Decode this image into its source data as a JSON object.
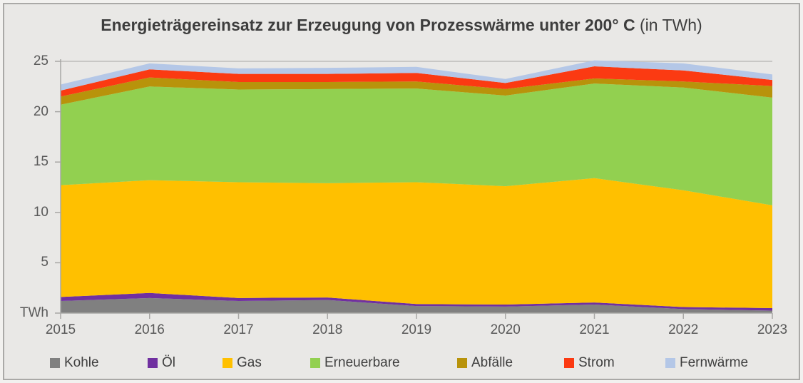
{
  "title": {
    "main": "Energieträgereinsatz zur Erzeugung von Prozesswärme unter 200° C",
    "suffix": " (in TWh)"
  },
  "chart_data": {
    "type": "area",
    "stacked": true,
    "title": "Energieträgereinsatz zur Erzeugung von Prozesswärme unter 200° C (in TWh)",
    "x": [
      "2015",
      "2016",
      "2017",
      "2018",
      "2019",
      "2020",
      "2021",
      "2022",
      "2023"
    ],
    "series": [
      {
        "name": "Kohle",
        "color": "#808080",
        "values": [
          1.2,
          1.5,
          1.2,
          1.3,
          0.7,
          0.65,
          0.85,
          0.4,
          0.25
        ]
      },
      {
        "name": "Öl",
        "color": "#7030A0",
        "values": [
          0.4,
          0.5,
          0.3,
          0.25,
          0.2,
          0.2,
          0.2,
          0.2,
          0.25
        ]
      },
      {
        "name": "Gas",
        "color": "#FFC000",
        "values": [
          11.1,
          11.2,
          11.5,
          11.35,
          12.1,
          11.75,
          12.35,
          11.6,
          10.2
        ]
      },
      {
        "name": "Erneuerbare",
        "color": "#92D050",
        "values": [
          8.0,
          9.3,
          9.2,
          9.35,
          9.3,
          9.0,
          9.4,
          10.2,
          10.7
        ]
      },
      {
        "name": "Abfälle",
        "color": "#B8930B",
        "values": [
          0.8,
          0.9,
          0.75,
          0.7,
          0.7,
          0.65,
          0.5,
          0.6,
          1.15
        ]
      },
      {
        "name": "Strom",
        "color": "#FB3A12",
        "values": [
          0.6,
          0.8,
          0.8,
          0.8,
          0.85,
          0.6,
          1.2,
          1.1,
          0.6
        ]
      },
      {
        "name": "Fernwärme",
        "color": "#B4C7E7",
        "values": [
          0.6,
          0.6,
          0.55,
          0.6,
          0.6,
          0.4,
          0.6,
          0.7,
          0.55
        ]
      }
    ],
    "ylabel": "TWh",
    "yticks": [
      5,
      10,
      15,
      20,
      25
    ],
    "zero_label": "TWh",
    "ylim": [
      0,
      25
    ],
    "grid": "top-line-only",
    "legend_position": "bottom"
  }
}
